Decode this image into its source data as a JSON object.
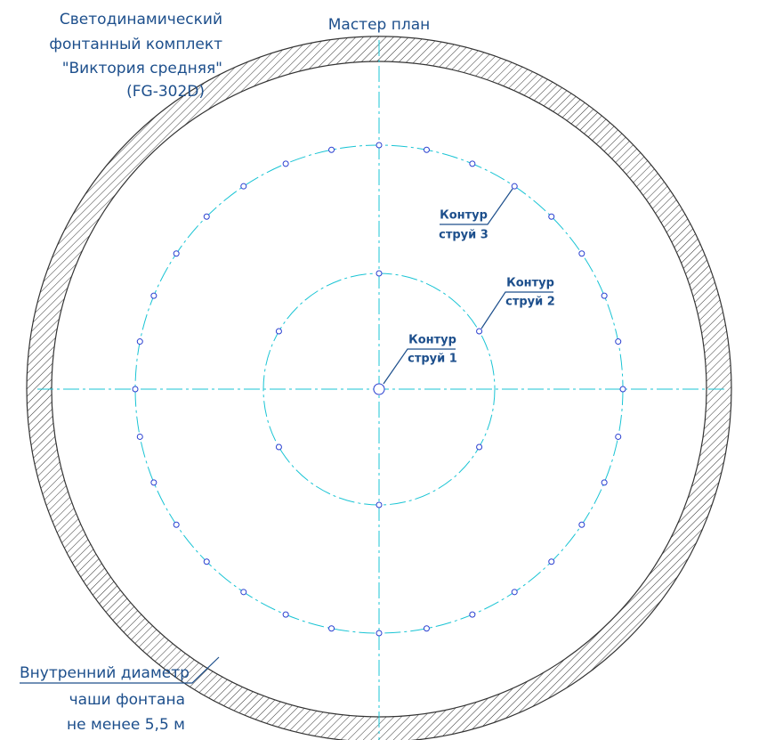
{
  "title_block": {
    "lines": [
      "Светодинамический",
      "фонтанный комплект",
      "\"Виктория средняя\"",
      "(FG-302D)"
    ]
  },
  "heading": "Мастер план",
  "labels": [
    {
      "lines": [
        "Контур",
        "струй 1"
      ]
    },
    {
      "lines": [
        "Контур",
        "струй 2"
      ]
    },
    {
      "lines": [
        "Контур",
        "струй 3"
      ]
    }
  ],
  "note": {
    "lines": [
      "Внутренний диаметр",
      "чаши фонтана",
      "не менее 5,5 м"
    ]
  }
}
